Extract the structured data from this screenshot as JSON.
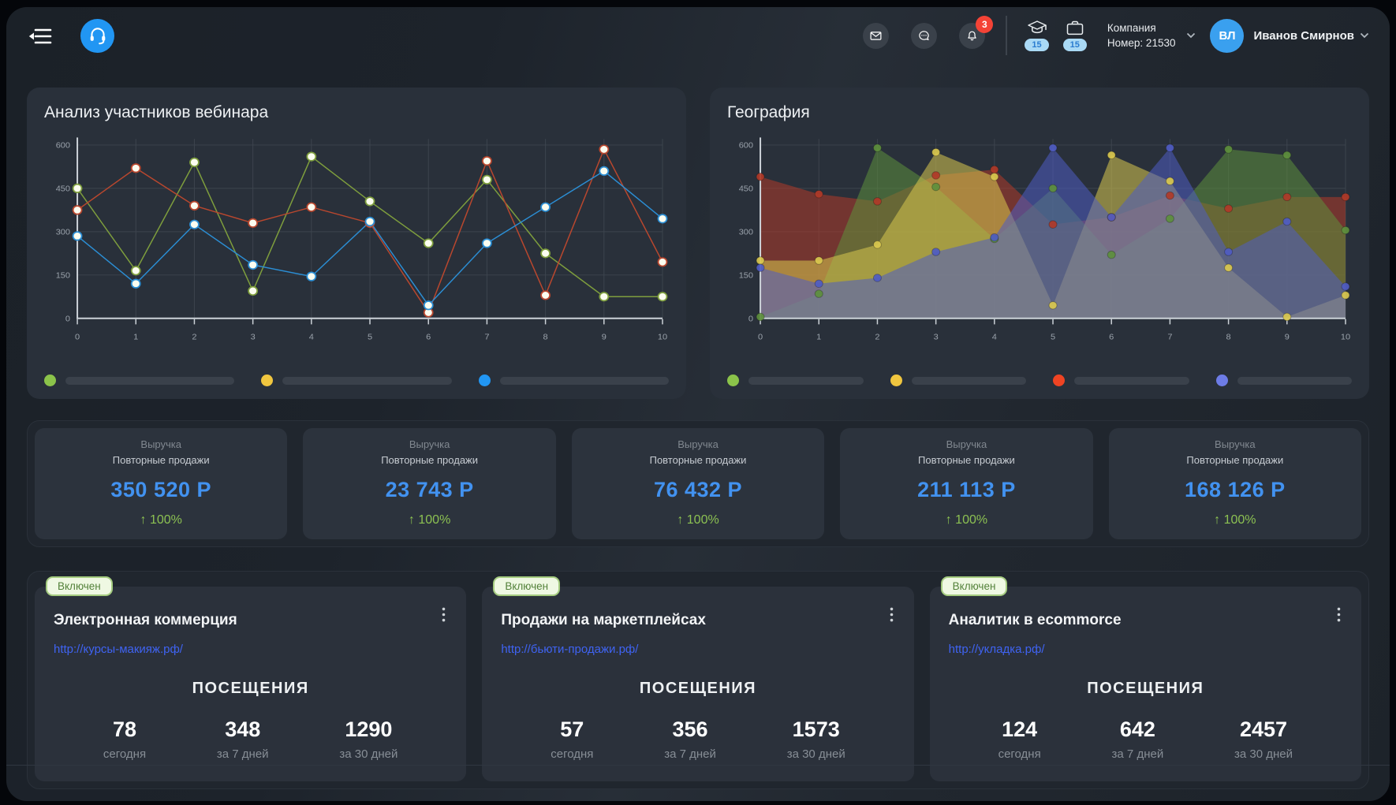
{
  "header": {
    "company": {
      "label": "Компания",
      "number": "Номер: 21530"
    },
    "user": {
      "initials": "ВЛ",
      "name": "Иванов Смирнов"
    },
    "notifications": {
      "count": "3"
    },
    "education_badge": "15",
    "cases_badge": "15",
    "colors": {
      "logo_blue": "#2196f3",
      "avatar_blue": "#3aa0ef",
      "badge_red": "#f44336"
    }
  },
  "chart_data": [
    {
      "type": "line",
      "title": "Анализ участников вебинара",
      "x": [
        0,
        1,
        2,
        3,
        4,
        5,
        6,
        7,
        8,
        9,
        10
      ],
      "ylim": [
        0,
        600
      ],
      "yticks": [
        0,
        150,
        300,
        450,
        600
      ],
      "grid": true,
      "legend": "none",
      "series": [
        {
          "name": "green",
          "color": "#7e9e3d",
          "values": [
            450,
            165,
            540,
            95,
            560,
            405,
            260,
            480,
            225,
            75,
            75
          ]
        },
        {
          "name": "red",
          "color": "#b9472e",
          "values": [
            375,
            520,
            390,
            330,
            385,
            330,
            20,
            545,
            80,
            585,
            195
          ]
        },
        {
          "name": "blue",
          "color": "#2b8ed4",
          "values": [
            285,
            120,
            325,
            185,
            145,
            335,
            45,
            260,
            385,
            510,
            345
          ]
        }
      ],
      "slider_colors": [
        "#8bc34a",
        "#f0c63f",
        "#2196f3"
      ]
    },
    {
      "type": "area",
      "title": "География",
      "x": [
        0,
        1,
        2,
        3,
        4,
        5,
        6,
        7,
        8,
        9,
        10
      ],
      "ylim": [
        0,
        600
      ],
      "yticks": [
        0,
        150,
        300,
        450,
        600
      ],
      "grid": true,
      "legend": "none",
      "series": [
        {
          "name": "red",
          "color": "#b03a28",
          "values": [
            490,
            430,
            405,
            495,
            515,
            325,
            350,
            425,
            380,
            420,
            420
          ]
        },
        {
          "name": "green",
          "color": "#5d8f3d",
          "values": [
            5,
            85,
            590,
            455,
            275,
            450,
            220,
            345,
            585,
            565,
            305
          ]
        },
        {
          "name": "yellow",
          "color": "#d9c84e",
          "values": [
            200,
            200,
            255,
            575,
            490,
            45,
            565,
            475,
            175,
            5,
            80
          ]
        },
        {
          "name": "purple",
          "color": "#4f5cc2",
          "values": [
            175,
            120,
            140,
            230,
            280,
            590,
            350,
            590,
            230,
            335,
            110
          ]
        }
      ],
      "slider_colors": [
        "#8bc34a",
        "#f0c63f",
        "#ef4423",
        "#6d7ce6"
      ]
    }
  ],
  "revenue_cards": [
    {
      "label": "Выручка",
      "sublabel": "Повторные продажи",
      "value": "350 520 Р",
      "trend": "↑ 100%"
    },
    {
      "label": "Выручка",
      "sublabel": "Повторные продажи",
      "value": "23 743 Р",
      "trend": "↑ 100%"
    },
    {
      "label": "Выручка",
      "sublabel": "Повторные продажи",
      "value": "76 432 Р",
      "trend": "↑ 100%"
    },
    {
      "label": "Выручка",
      "sublabel": "Повторные продажи",
      "value": "211 113 Р",
      "trend": "↑ 100%"
    },
    {
      "label": "Выручка",
      "sublabel": "Повторные продажи",
      "value": "168 126 Р",
      "trend": "↑ 100%"
    }
  ],
  "site_cards": [
    {
      "status": "Включен",
      "title": "Электронная коммерция",
      "url": "http://курсы-макияж.рф/",
      "visits_label": "ПОСЕЩЕНИЯ",
      "stats": [
        {
          "value": "78",
          "label": "сегодня"
        },
        {
          "value": "348",
          "label": "за 7 дней"
        },
        {
          "value": "1290",
          "label": "за 30 дней"
        }
      ]
    },
    {
      "status": "Включен",
      "title": "Продажи на маркетплейсах",
      "url": "http://бьюти-продажи.рф/",
      "visits_label": "ПОСЕЩЕНИЯ",
      "stats": [
        {
          "value": "57",
          "label": "сегодня"
        },
        {
          "value": "356",
          "label": "за 7 дней"
        },
        {
          "value": "1573",
          "label": "за 30 дней"
        }
      ]
    },
    {
      "status": "Включен",
      "title": "Аналитик в ecommorce",
      "url": "http://укладка.рф/",
      "visits_label": "ПОСЕЩЕНИЯ",
      "stats": [
        {
          "value": "124",
          "label": "сегодня"
        },
        {
          "value": "642",
          "label": "за 7 дней"
        },
        {
          "value": "2457",
          "label": "за 30 дней"
        }
      ]
    }
  ]
}
